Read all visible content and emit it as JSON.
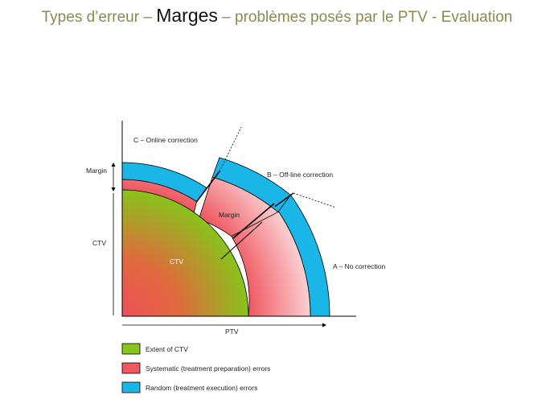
{
  "title": {
    "prefix": "Types d’erreur – ",
    "emphasis": "Marges",
    "suffix": " – problèmes posés par le PTV - Evaluation"
  },
  "diagram": {
    "case_labels": {
      "online": "C – Online correction",
      "offline": "B – Off-line correction",
      "none": "A – No correction"
    },
    "margin_axis_label": "Margin",
    "ctv_axis_label": "CTV",
    "ptv_axis_label": "PTV",
    "margin_region_label": "Margin",
    "ctv_region_label": "CTV"
  },
  "legend": {
    "items": [
      {
        "label": "Extent of CTV",
        "color": "#88c41a"
      },
      {
        "label": "Systematic (treatment preparation) errors",
        "color": "#f0575f"
      },
      {
        "label": "Random (treatment execution) errors",
        "color": "#1ab6e8"
      }
    ]
  },
  "colors": {
    "ctv_green": "#88c41a",
    "systematic_red": "#f0575f",
    "random_blue": "#1ab6e8",
    "title_olive": "#8c8a4e"
  }
}
